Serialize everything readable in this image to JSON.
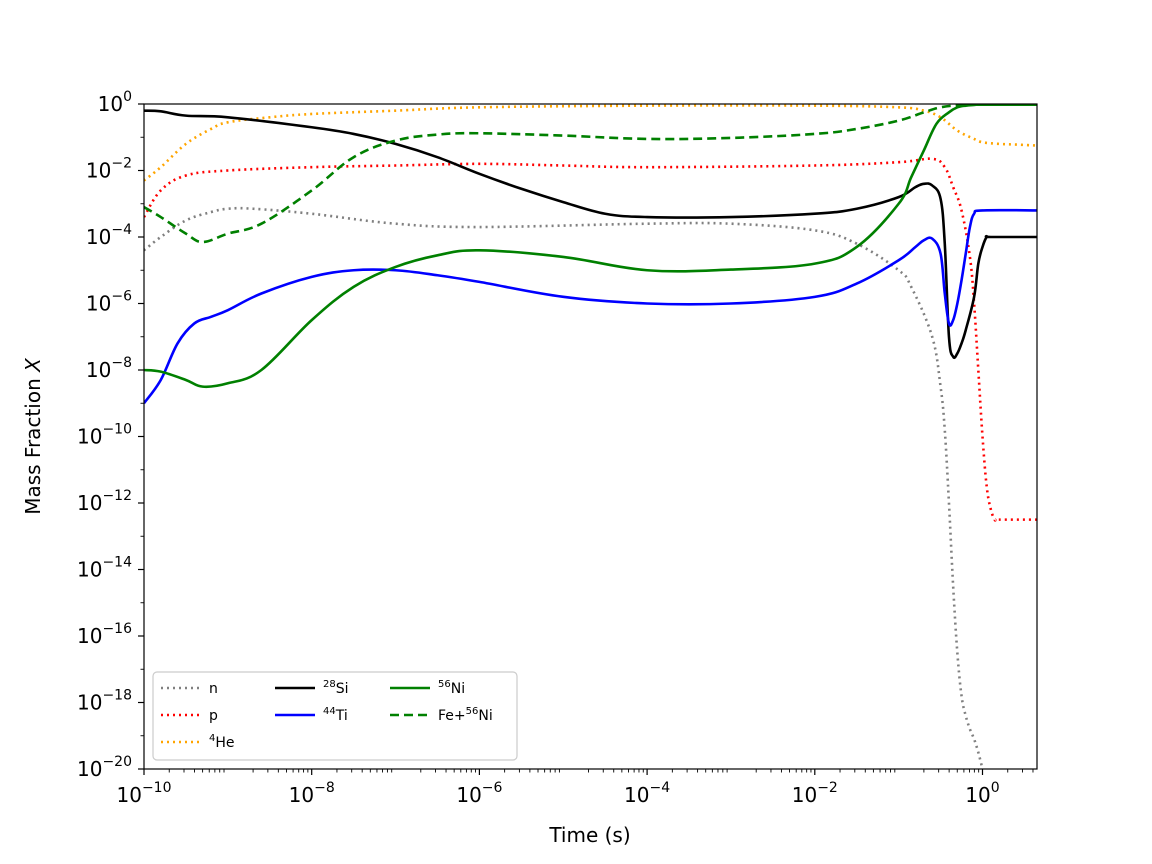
{
  "chart_data": {
    "type": "line",
    "xlabel": "Time (s)",
    "ylabel": "Mass Fraction X",
    "ylabel_main": "Mass Fraction ",
    "ylabel_var": "X",
    "xscale": "log",
    "yscale": "log",
    "xlim_log10": [
      -10,
      0.65
    ],
    "ylim_log10": [
      -20,
      0
    ],
    "x_ticks": [
      {
        "base": "10",
        "exp": "−10"
      },
      {
        "base": "10",
        "exp": "−8"
      },
      {
        "base": "10",
        "exp": "−6"
      },
      {
        "base": "10",
        "exp": "−4"
      },
      {
        "base": "10",
        "exp": "−2"
      },
      {
        "base": "10",
        "exp": "0"
      }
    ],
    "x_tick_values_log10": [
      -10,
      -8,
      -6,
      -4,
      -2,
      0
    ],
    "y_ticks": [
      {
        "base": "10",
        "exp": "0"
      },
      {
        "base": "10",
        "exp": "−2"
      },
      {
        "base": "10",
        "exp": "−4"
      },
      {
        "base": "10",
        "exp": "−6"
      },
      {
        "base": "10",
        "exp": "−8"
      },
      {
        "base": "10",
        "exp": "−10"
      },
      {
        "base": "10",
        "exp": "−12"
      },
      {
        "base": "10",
        "exp": "−14"
      },
      {
        "base": "10",
        "exp": "−16"
      },
      {
        "base": "10",
        "exp": "−18"
      },
      {
        "base": "10",
        "exp": "−20"
      }
    ],
    "y_tick_values_log10": [
      0,
      -2,
      -4,
      -6,
      -8,
      -10,
      -12,
      -14,
      -16,
      -18,
      -20
    ],
    "legend_position": "bottom-left",
    "series": [
      {
        "name": "n",
        "label_pre": "",
        "label_sup": "",
        "label_main": "n",
        "color": "#808080",
        "style": "dotted",
        "log10x": [
          -10,
          -9.8,
          -9.5,
          -9.2,
          -9.0,
          -8.7,
          -8.0,
          -7.0,
          -6.0,
          -4.0,
          -3.0,
          -2.0,
          -1.5,
          -1.0,
          -0.85,
          -0.6,
          -0.5,
          -0.45,
          -0.4,
          -0.35,
          -0.3,
          -0.25,
          -0.2,
          -0.15,
          -0.1,
          -0.05,
          0,
          0.02
        ],
        "log10y": [
          -4.4,
          -4.0,
          -3.5,
          -3.25,
          -3.15,
          -3.15,
          -3.3,
          -3.6,
          -3.7,
          -3.6,
          -3.6,
          -3.8,
          -4.2,
          -5.0,
          -5.5,
          -7.0,
          -8.5,
          -9.8,
          -12.0,
          -14.5,
          -16.5,
          -17.8,
          -18.4,
          -18.8,
          -19.1,
          -19.5,
          -20.0,
          -20.2
        ]
      },
      {
        "name": "p",
        "label_pre": "",
        "label_sup": "",
        "label_main": "p",
        "color": "#ff0000",
        "style": "dotted",
        "log10x": [
          -10,
          -9.8,
          -9.5,
          -9.0,
          -8.0,
          -7.0,
          -6.0,
          -5.0,
          -4.0,
          -2.0,
          -1.0,
          -0.6,
          -0.45,
          -0.35,
          -0.25,
          -0.15,
          -0.1,
          -0.05,
          0.0,
          0.05,
          0.1,
          0.15,
          0.2,
          0.65
        ],
        "log10y": [
          -3.4,
          -2.6,
          -2.15,
          -2.0,
          -1.9,
          -1.85,
          -1.8,
          -1.85,
          -1.9,
          -1.85,
          -1.75,
          -1.65,
          -1.9,
          -2.5,
          -3.2,
          -4.6,
          -6.0,
          -8.0,
          -10.0,
          -11.5,
          -12.2,
          -12.5,
          -12.5,
          -12.5
        ]
      },
      {
        "name": "4He",
        "label_pre": "",
        "label_sup": "4",
        "label_main": "He",
        "color": "#ffa500",
        "style": "dotted",
        "log10x": [
          -10,
          -9.8,
          -9.5,
          -9.2,
          -9.0,
          -8.5,
          -8.0,
          -7.0,
          -6.0,
          -4.0,
          -2.0,
          -1.0,
          -0.7,
          -0.5,
          -0.3,
          -0.1,
          0.0,
          0.2,
          0.4,
          0.65
        ],
        "log10y": [
          -2.3,
          -1.9,
          -1.2,
          -0.75,
          -0.55,
          -0.4,
          -0.3,
          -0.2,
          -0.1,
          -0.05,
          -0.05,
          -0.1,
          -0.2,
          -0.4,
          -0.8,
          -1.05,
          -1.15,
          -1.2,
          -1.22,
          -1.25
        ]
      },
      {
        "name": "28Si",
        "label_pre": "",
        "label_sup": "28",
        "label_main": "Si",
        "color": "#000000",
        "style": "solid",
        "log10x": [
          -10,
          -9.8,
          -9.5,
          -9.0,
          -8.0,
          -7.5,
          -7.0,
          -6.5,
          -6.0,
          -5.5,
          -5.0,
          -4.5,
          -4.0,
          -3.0,
          -2.0,
          -1.5,
          -1.0,
          -0.8,
          -0.7,
          -0.6,
          -0.5,
          -0.45,
          -0.4,
          -0.35,
          -0.3,
          -0.25,
          -0.2,
          -0.1,
          -0.05,
          0.0,
          0.05,
          0.1,
          0.65
        ],
        "log10y": [
          -0.2,
          -0.22,
          -0.35,
          -0.4,
          -0.7,
          -0.9,
          -1.2,
          -1.6,
          -2.1,
          -2.55,
          -2.95,
          -3.3,
          -3.4,
          -3.4,
          -3.3,
          -3.15,
          -2.8,
          -2.5,
          -2.4,
          -2.45,
          -2.85,
          -4.2,
          -7.0,
          -7.6,
          -7.5,
          -7.2,
          -6.8,
          -5.8,
          -4.8,
          -4.3,
          -4.0,
          -4.0,
          -4.0
        ]
      },
      {
        "name": "44Ti",
        "label_pre": "",
        "label_sup": "44",
        "label_main": "Ti",
        "color": "#0000ff",
        "style": "solid",
        "log10x": [
          -10,
          -9.8,
          -9.6,
          -9.4,
          -9.2,
          -9.0,
          -8.6,
          -8.0,
          -7.5,
          -7.0,
          -6.5,
          -6.0,
          -5.0,
          -4.0,
          -3.0,
          -2.0,
          -1.5,
          -1.0,
          -0.8,
          -0.7,
          -0.6,
          -0.5,
          -0.45,
          -0.4,
          -0.35,
          -0.3,
          -0.25,
          -0.2,
          -0.15,
          -0.1,
          0.0,
          0.65
        ],
        "log10y": [
          -9.0,
          -8.3,
          -7.2,
          -6.6,
          -6.4,
          -6.2,
          -5.7,
          -5.2,
          -5.0,
          -5.0,
          -5.15,
          -5.35,
          -5.8,
          -6.0,
          -6.0,
          -5.8,
          -5.4,
          -4.7,
          -4.3,
          -4.1,
          -4.05,
          -4.5,
          -5.7,
          -6.6,
          -6.5,
          -6.0,
          -5.3,
          -4.5,
          -3.7,
          -3.3,
          -3.2,
          -3.2
        ]
      },
      {
        "name": "56Ni",
        "label_pre": "",
        "label_sup": "56",
        "label_main": "Ni",
        "color": "#008000",
        "style": "solid",
        "log10x": [
          -10,
          -9.8,
          -9.5,
          -9.3,
          -9.0,
          -8.6,
          -8.0,
          -7.5,
          -7.0,
          -6.5,
          -6.0,
          -5.0,
          -4.0,
          -3.0,
          -2.0,
          -1.5,
          -1.0,
          -0.85,
          -0.7,
          -0.55,
          -0.4,
          -0.3,
          -0.2,
          -0.1,
          0.0,
          0.65
        ],
        "log10y": [
          -8.0,
          -8.05,
          -8.3,
          -8.5,
          -8.4,
          -8.0,
          -6.5,
          -5.5,
          -4.9,
          -4.55,
          -4.4,
          -4.6,
          -5.0,
          -4.98,
          -4.8,
          -4.3,
          -3.0,
          -2.2,
          -1.4,
          -0.6,
          -0.25,
          -0.1,
          -0.05,
          -0.03,
          -0.02,
          -0.02
        ]
      },
      {
        "name": "Fe+56Ni",
        "label_pre": "Fe+",
        "label_sup": "56",
        "label_main": "Ni",
        "color": "#008000",
        "style": "dashed",
        "log10x": [
          -10,
          -9.8,
          -9.5,
          -9.3,
          -9.0,
          -8.6,
          -8.0,
          -7.5,
          -7.0,
          -6.5,
          -6.0,
          -5.0,
          -4.0,
          -3.0,
          -2.0,
          -1.5,
          -1.0,
          -0.7,
          -0.5,
          -0.3,
          -0.1,
          0.0,
          0.65
        ],
        "log10y": [
          -3.1,
          -3.4,
          -3.9,
          -4.15,
          -3.9,
          -3.6,
          -2.6,
          -1.6,
          -1.1,
          -0.92,
          -0.88,
          -0.95,
          -1.05,
          -1.02,
          -0.9,
          -0.75,
          -0.5,
          -0.25,
          -0.1,
          -0.04,
          -0.02,
          -0.02,
          -0.02
        ]
      }
    ]
  }
}
